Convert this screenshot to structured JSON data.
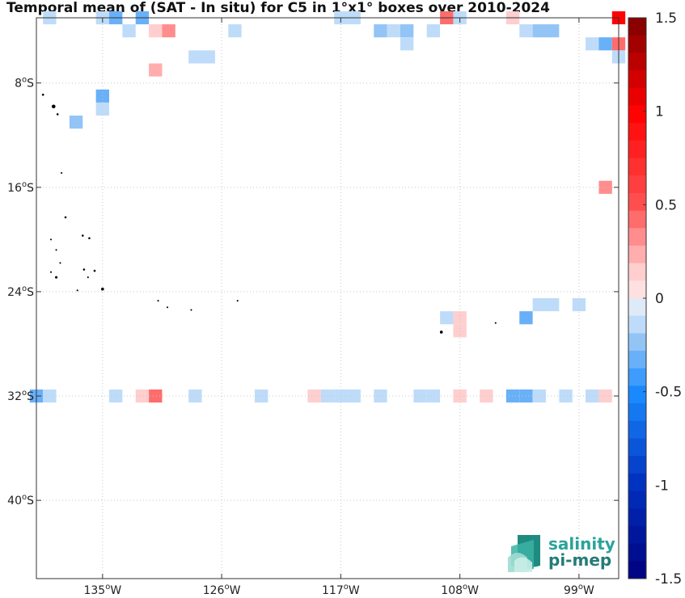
{
  "title": "Temporal mean of (SAT - In situ) for C5 in 1°x1° boxes over 2010-2024",
  "map": {
    "lon_range": [
      -140,
      -96
    ],
    "lat_range": [
      -46,
      -3
    ],
    "lon_ticks": [
      {
        "lon": -135,
        "deg": "135",
        "hem": "W"
      },
      {
        "lon": -126,
        "deg": "126",
        "hem": "W"
      },
      {
        "lon": -117,
        "deg": "117",
        "hem": "W"
      },
      {
        "lon": -108,
        "deg": "108",
        "hem": "W"
      },
      {
        "lon": -99,
        "deg": "99",
        "hem": "W"
      }
    ],
    "lat_ticks": [
      {
        "lat": -8,
        "deg": "8",
        "hem": "S"
      },
      {
        "lat": -16,
        "deg": "16",
        "hem": "S"
      },
      {
        "lat": -24,
        "deg": "24",
        "hem": "S"
      },
      {
        "lat": -32,
        "deg": "32",
        "hem": "S"
      },
      {
        "lat": -40,
        "deg": "40",
        "hem": "S"
      }
    ],
    "grid": true,
    "land_color": "#000000",
    "boxes": [
      {
        "lon": -139,
        "lat": -3,
        "value": -0.1
      },
      {
        "lon": -135,
        "lat": -3,
        "value": -0.1
      },
      {
        "lon": -134,
        "lat": -3,
        "value": -0.3
      },
      {
        "lon": -132,
        "lat": -3,
        "value": -0.3
      },
      {
        "lon": -117,
        "lat": -3,
        "value": -0.1
      },
      {
        "lon": -116,
        "lat": -3,
        "value": -0.1
      },
      {
        "lon": -109,
        "lat": -3,
        "value": 0.4
      },
      {
        "lon": -108,
        "lat": -3,
        "value": -0.1
      },
      {
        "lon": -104,
        "lat": -3,
        "value": 0.15
      },
      {
        "lon": -96,
        "lat": -3,
        "value": 1.0
      },
      {
        "lon": -133,
        "lat": -4,
        "value": -0.1
      },
      {
        "lon": -131,
        "lat": -4,
        "value": 0.15
      },
      {
        "lon": -130,
        "lat": -4,
        "value": 0.3
      },
      {
        "lon": -125,
        "lat": -4,
        "value": -0.1
      },
      {
        "lon": -114,
        "lat": -4,
        "value": -0.2
      },
      {
        "lon": -113,
        "lat": -4,
        "value": -0.1
      },
      {
        "lon": -112,
        "lat": -4,
        "value": -0.2
      },
      {
        "lon": -110,
        "lat": -4,
        "value": -0.1
      },
      {
        "lon": -103,
        "lat": -4,
        "value": -0.1
      },
      {
        "lon": -102,
        "lat": -4,
        "value": -0.2
      },
      {
        "lon": -101,
        "lat": -4,
        "value": -0.2
      },
      {
        "lon": -112,
        "lat": -5,
        "value": -0.1
      },
      {
        "lon": -98,
        "lat": -5,
        "value": -0.1
      },
      {
        "lon": -97,
        "lat": -5,
        "value": -0.3
      },
      {
        "lon": -96,
        "lat": -5,
        "value": 0.4
      },
      {
        "lon": -128,
        "lat": -6,
        "value": -0.1
      },
      {
        "lon": -127,
        "lat": -6,
        "value": -0.1
      },
      {
        "lon": -96,
        "lat": -6,
        "value": -0.1
      },
      {
        "lon": -131,
        "lat": -7,
        "value": 0.2
      },
      {
        "lon": -135,
        "lat": -9,
        "value": -0.3
      },
      {
        "lon": -135,
        "lat": -10,
        "value": -0.1
      },
      {
        "lon": -137,
        "lat": -11,
        "value": -0.2
      },
      {
        "lon": -97,
        "lat": -16,
        "value": 0.3
      },
      {
        "lon": -102,
        "lat": -25,
        "value": -0.1
      },
      {
        "lon": -101,
        "lat": -25,
        "value": -0.1
      },
      {
        "lon": -99,
        "lat": -25,
        "value": -0.1
      },
      {
        "lon": -109,
        "lat": -26,
        "value": -0.1
      },
      {
        "lon": -108,
        "lat": -26,
        "value": 0.15
      },
      {
        "lon": -103,
        "lat": -26,
        "value": -0.3
      },
      {
        "lon": -108,
        "lat": -27,
        "value": 0.15
      },
      {
        "lon": -140,
        "lat": -32,
        "value": -0.3
      },
      {
        "lon": -139,
        "lat": -32,
        "value": -0.1
      },
      {
        "lon": -134,
        "lat": -32,
        "value": -0.1
      },
      {
        "lon": -132,
        "lat": -32,
        "value": 0.15
      },
      {
        "lon": -131,
        "lat": -32,
        "value": 0.4
      },
      {
        "lon": -128,
        "lat": -32,
        "value": -0.1
      },
      {
        "lon": -123,
        "lat": -32,
        "value": -0.1
      },
      {
        "lon": -119,
        "lat": -32,
        "value": 0.15
      },
      {
        "lon": -118,
        "lat": -32,
        "value": -0.1
      },
      {
        "lon": -117,
        "lat": -32,
        "value": -0.1
      },
      {
        "lon": -116,
        "lat": -32,
        "value": -0.1
      },
      {
        "lon": -114,
        "lat": -32,
        "value": -0.1
      },
      {
        "lon": -111,
        "lat": -32,
        "value": -0.1
      },
      {
        "lon": -110,
        "lat": -32,
        "value": -0.1
      },
      {
        "lon": -108,
        "lat": -32,
        "value": 0.15
      },
      {
        "lon": -106,
        "lat": -32,
        "value": 0.15
      },
      {
        "lon": -104,
        "lat": -32,
        "value": -0.3
      },
      {
        "lon": -103,
        "lat": -32,
        "value": -0.3
      },
      {
        "lon": -102,
        "lat": -32,
        "value": -0.1
      },
      {
        "lon": -100,
        "lat": -32,
        "value": -0.1
      },
      {
        "lon": -98,
        "lat": -32,
        "value": -0.1
      },
      {
        "lon": -97,
        "lat": -32,
        "value": 0.15
      }
    ],
    "islands": [
      {
        "lon": -139.5,
        "lat": -8.9,
        "size": 2
      },
      {
        "lon": -138.7,
        "lat": -9.8,
        "size": 4
      },
      {
        "lon": -138.4,
        "lat": -10.4,
        "size": 2
      },
      {
        "lon": -138.1,
        "lat": -14.9,
        "size": 1.5
      },
      {
        "lon": -137.8,
        "lat": -18.3,
        "size": 2
      },
      {
        "lon": -136.5,
        "lat": -19.7,
        "size": 2
      },
      {
        "lon": -136.0,
        "lat": -19.9,
        "size": 2
      },
      {
        "lon": -138.9,
        "lat": -20.0,
        "size": 1.5
      },
      {
        "lon": -138.5,
        "lat": -20.8,
        "size": 1.5
      },
      {
        "lon": -138.2,
        "lat": -21.8,
        "size": 1.5
      },
      {
        "lon": -136.4,
        "lat": -22.3,
        "size": 2
      },
      {
        "lon": -135.6,
        "lat": -22.4,
        "size": 2
      },
      {
        "lon": -136.1,
        "lat": -22.9,
        "size": 1.5
      },
      {
        "lon": -138.5,
        "lat": -22.9,
        "size": 2.5
      },
      {
        "lon": -138.9,
        "lat": -22.5,
        "size": 1.5
      },
      {
        "lon": -136.9,
        "lat": -23.9,
        "size": 1.5
      },
      {
        "lon": -135.0,
        "lat": -23.8,
        "size": 3
      },
      {
        "lon": -130.8,
        "lat": -24.7,
        "size": 1.5
      },
      {
        "lon": -130.1,
        "lat": -25.2,
        "size": 1.5
      },
      {
        "lon": -128.3,
        "lat": -25.4,
        "size": 1.5
      },
      {
        "lon": -124.8,
        "lat": -24.7,
        "size": 1.5
      },
      {
        "lon": -105.3,
        "lat": -26.4,
        "size": 1.5
      },
      {
        "lon": -109.4,
        "lat": -27.1,
        "size": 3
      }
    ]
  },
  "colorbar": {
    "min": -1.5,
    "max": 1.5,
    "steps": 32,
    "ticks": [
      {
        "value": 1.5,
        "label": "1.5"
      },
      {
        "value": 1.0,
        "label": "1"
      },
      {
        "value": 0.5,
        "label": "0.5"
      },
      {
        "value": 0.0,
        "label": "0"
      },
      {
        "value": -0.5,
        "label": "-0.5"
      },
      {
        "value": -1.0,
        "label": "-1"
      },
      {
        "value": -1.5,
        "label": "-1.5"
      }
    ],
    "neg_color": "#00007f",
    "zero_color": "#ffffff",
    "pos_color": "#7f0000"
  },
  "logo": {
    "line1": "salinity",
    "line2": "pi-mep",
    "color": "#2aa39a"
  }
}
